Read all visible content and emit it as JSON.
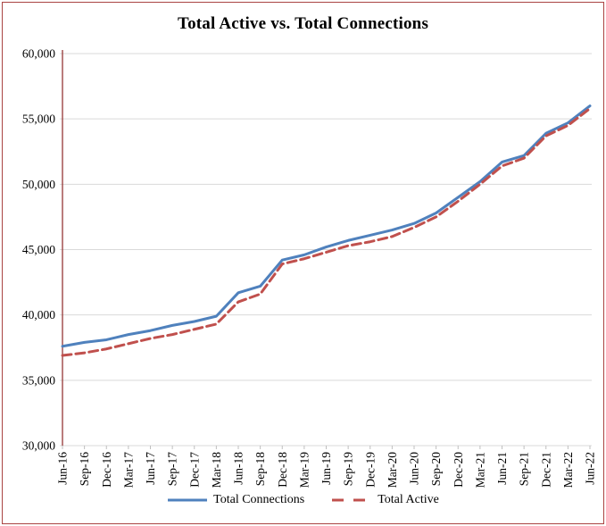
{
  "colors": {
    "connections_line": "#4F81BD",
    "active_line": "#C0504D",
    "axis_line": "#953735",
    "border": "#A94442",
    "gridline": "#D9D9D9",
    "tick": "#BFBFBF",
    "text": "#000000",
    "background": "#FFFFFF"
  },
  "chart_data": {
    "type": "line",
    "title": "Total Active vs. Total Connections",
    "categories": [
      "Jun-16",
      "Sep-16",
      "Dec-16",
      "Mar-17",
      "Jun-17",
      "Sep-17",
      "Dec-17",
      "Mar-18",
      "Jun-18",
      "Sep-18",
      "Dec-18",
      "Mar-19",
      "Jun-19",
      "Sep-19",
      "Dec-19",
      "Mar-20",
      "Jun-20",
      "Sep-20",
      "Dec-20",
      "Mar-21",
      "Jun-21",
      "Sep-21",
      "Dec-21",
      "Mar-22",
      "Jun-22"
    ],
    "series": [
      {
        "name": "Total Connections",
        "color": "#4F81BD",
        "line_style": "solid",
        "values": [
          37600,
          37900,
          38100,
          38500,
          38800,
          39200,
          39500,
          39900,
          41700,
          42200,
          44200,
          44600,
          45200,
          45700,
          46100,
          46500,
          47000,
          47800,
          49000,
          50200,
          51700,
          52200,
          53900,
          54700,
          56000
        ]
      },
      {
        "name": "Total Active",
        "color": "#C0504D",
        "line_style": "dashed",
        "values": [
          36900,
          37100,
          37400,
          37800,
          38200,
          38500,
          38900,
          39300,
          41000,
          41600,
          43900,
          44300,
          44800,
          45300,
          45600,
          46000,
          46700,
          47500,
          48700,
          50000,
          51400,
          52000,
          53700,
          54500,
          55800
        ]
      }
    ],
    "ylim": [
      30000,
      60000
    ],
    "ytick_interval": 5000,
    "ytick_labels": [
      "30,000",
      "35,000",
      "40,000",
      "45,000",
      "50,000",
      "55,000",
      "60,000"
    ],
    "xlabel": "",
    "ylabel": "",
    "grid": "horizontal",
    "legend_position": "bottom",
    "x_label_rotation": -90
  }
}
